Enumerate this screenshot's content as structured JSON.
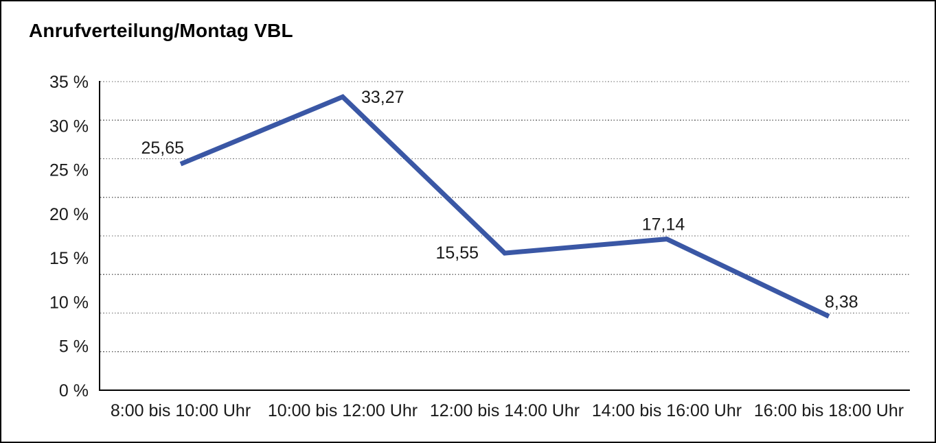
{
  "title": "Anrufverteilung/Montag VBL",
  "chart_data": {
    "type": "line",
    "title": "Anrufverteilung/Montag VBL",
    "categories": [
      "8:00 bis 10:00 Uhr",
      "10:00 bis 12:00 Uhr",
      "12:00 bis 14:00 Uhr",
      "14:00 bis 16:00 Uhr",
      "16:00 bis 18:00 Uhr"
    ],
    "values": [
      25.65,
      33.27,
      15.55,
      17.14,
      8.38
    ],
    "value_labels": [
      "25,65",
      "33,27",
      "15,55",
      "17,14",
      "8,38"
    ],
    "unit": "%",
    "ylim": [
      0,
      35
    ],
    "ytick_values": [
      35,
      30,
      25,
      20,
      15,
      10,
      5,
      0
    ],
    "ytick_labels": [
      "35 %",
      "30 %",
      "25 %",
      "20 %",
      "15 %",
      "10 %",
      "5 %",
      "0 %"
    ],
    "grid": {
      "horizontal": true,
      "style": "dotted",
      "divisions": 8
    },
    "legend": "none",
    "colors": {
      "line": "#3A57A5",
      "axis": "#000000",
      "gridline": "#6b6b6b",
      "text": "#1a1a1a"
    }
  }
}
